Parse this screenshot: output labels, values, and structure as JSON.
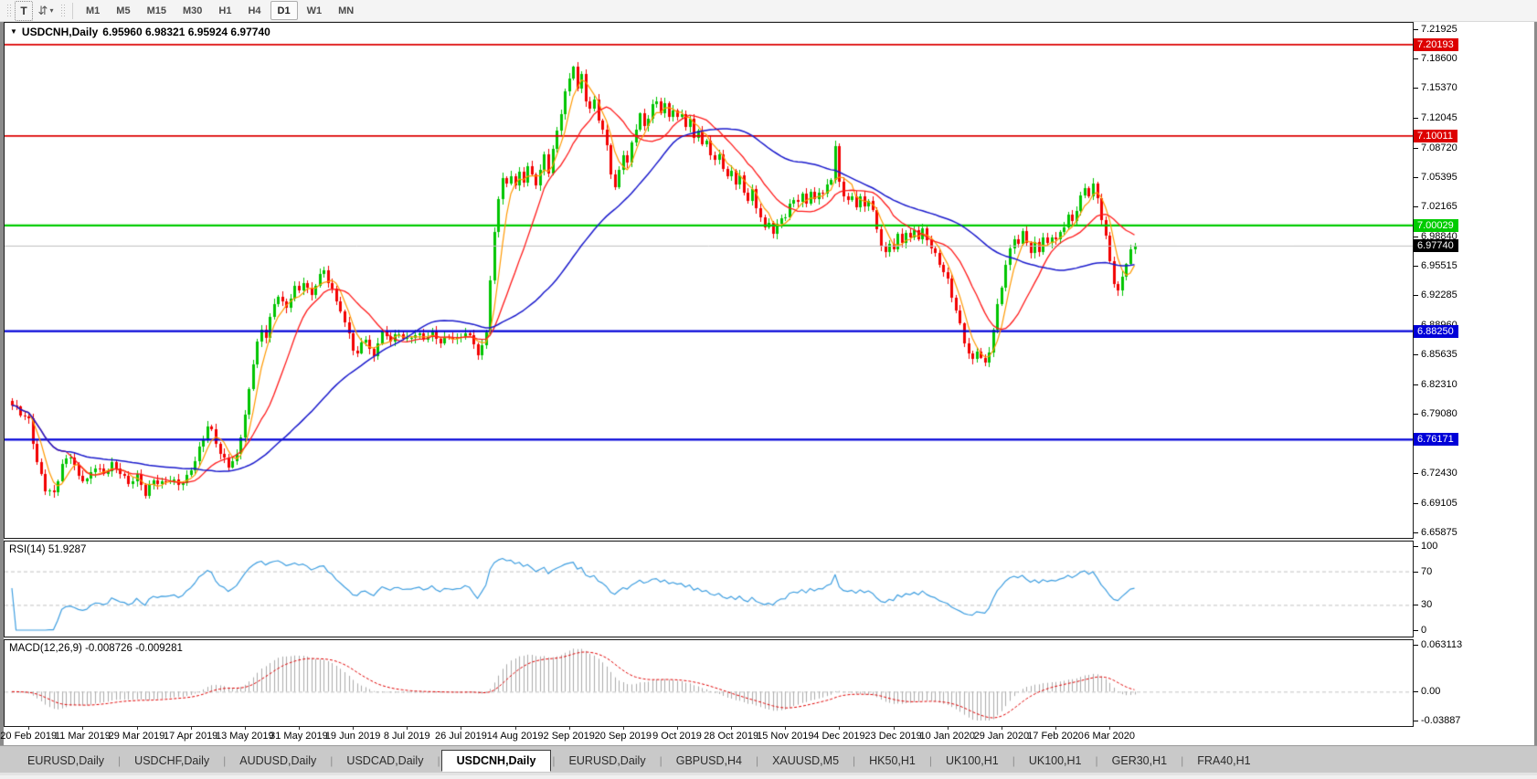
{
  "toolbar": {
    "text_tool_label": "T",
    "swap_tool_glyph": "⇵",
    "dropdown_caret": "▾",
    "timeframes": [
      "M1",
      "M5",
      "M15",
      "M30",
      "H1",
      "H4",
      "D1",
      "W1",
      "MN"
    ],
    "active_timeframe": "D1"
  },
  "chart_title": {
    "window_menu_icon": "▼",
    "symbol_period": "USDCNH,Daily",
    "ohlc": "6.95960 6.98321 6.95924 6.97740"
  },
  "tabs": {
    "items": [
      {
        "label": "EURUSD,Daily",
        "active": false
      },
      {
        "label": "USDCHF,Daily",
        "active": false
      },
      {
        "label": "AUDUSD,Daily",
        "active": false
      },
      {
        "label": "USDCAD,Daily",
        "active": false
      },
      {
        "label": "USDCNH,Daily",
        "active": true
      },
      {
        "label": "EURUSD,Daily",
        "active": false
      },
      {
        "label": "GBPUSD,H4",
        "active": false
      },
      {
        "label": "XAUUSD,M5",
        "active": false
      },
      {
        "label": "HK50,H1",
        "active": false
      },
      {
        "label": "UK100,H1",
        "active": false
      },
      {
        "label": "UK100,H1",
        "active": false
      },
      {
        "label": "GER30,H1",
        "active": false
      },
      {
        "label": "FRA40,H1",
        "active": false
      }
    ]
  },
  "chart_data": {
    "type": "candlestick",
    "symbol": "USDCNH",
    "period": "Daily",
    "y_range": [
      6.6522,
      7.2262
    ],
    "price_ticks": [
      "7.21925",
      "7.18600",
      "7.15370",
      "7.12045",
      "7.08720",
      "7.05395",
      "7.02165",
      "6.98840",
      "6.95515",
      "6.92285",
      "6.88960",
      "6.85635",
      "6.82310",
      "6.79080",
      "6.75755",
      "6.72430",
      "6.69105",
      "6.65875"
    ],
    "hlines": [
      {
        "price": 7.20193,
        "label": "7.20193",
        "color": "#dd0000",
        "width": 1.6
      },
      {
        "price": 7.10011,
        "label": "7.10011",
        "color": "#dd0000",
        "width": 1.6
      },
      {
        "price": 7.00029,
        "label": "7.00029",
        "color": "#00cc00",
        "width": 2.2
      },
      {
        "price": 6.9774,
        "label": "6.97740",
        "color": "#bfbfbf",
        "width": 1,
        "badge": "#000000"
      },
      {
        "price": 6.8825,
        "label": "6.88250",
        "color": "#0000d8",
        "width": 2.2
      },
      {
        "price": 6.76171,
        "label": "6.76171",
        "color": "#0000d8",
        "width": 2.2
      }
    ],
    "x_labels": [
      "20 Feb 2019",
      "11 Mar 2019",
      "29 Mar 2019",
      "17 Apr 2019",
      "13 May 2019",
      "31 May 2019",
      "19 Jun 2019",
      "8 Jul 2019",
      "26 Jul 2019",
      "14 Aug 2019",
      "2 Sep 2019",
      "20 Sep 2019",
      "9 Oct 2019",
      "28 Oct 2019",
      "15 Nov 2019",
      "4 Dec 2019",
      "23 Dec 2019",
      "10 Jan 2020",
      "29 Jan 2020",
      "17 Feb 2020",
      "6 Mar 2020"
    ],
    "first_label_day": 4,
    "label_interval_days": 13,
    "n_days": 271,
    "close_anchors": [
      [
        0,
        6.8
      ],
      [
        1,
        6.795
      ],
      [
        2,
        6.789
      ],
      [
        3,
        6.786
      ],
      [
        4,
        6.783
      ],
      [
        5,
        6.76
      ],
      [
        6,
        6.738
      ],
      [
        8,
        6.708
      ],
      [
        10,
        6.7
      ],
      [
        12,
        6.732
      ],
      [
        14,
        6.745
      ],
      [
        16,
        6.722
      ],
      [
        18,
        6.716
      ],
      [
        20,
        6.731
      ],
      [
        22,
        6.723
      ],
      [
        24,
        6.736
      ],
      [
        26,
        6.726
      ],
      [
        28,
        6.711
      ],
      [
        30,
        6.72
      ],
      [
        32,
        6.702
      ],
      [
        34,
        6.718
      ],
      [
        36,
        6.712
      ],
      [
        38,
        6.716
      ],
      [
        40,
        6.712
      ],
      [
        42,
        6.721
      ],
      [
        44,
        6.739
      ],
      [
        46,
        6.762
      ],
      [
        47,
        6.776
      ],
      [
        48,
        6.77
      ],
      [
        50,
        6.748
      ],
      [
        52,
        6.734
      ],
      [
        54,
        6.742
      ],
      [
        56,
        6.788
      ],
      [
        57,
        6.815
      ],
      [
        58,
        6.848
      ],
      [
        59,
        6.872
      ],
      [
        60,
        6.884
      ],
      [
        61,
        6.878
      ],
      [
        62,
        6.898
      ],
      [
        63,
        6.91
      ],
      [
        64,
        6.922
      ],
      [
        65,
        6.914
      ],
      [
        66,
        6.906
      ],
      [
        67,
        6.922
      ],
      [
        68,
        6.934
      ],
      [
        69,
        6.928
      ],
      [
        70,
        6.94
      ],
      [
        71,
        6.93
      ],
      [
        72,
        6.92
      ],
      [
        73,
        6.934
      ],
      [
        74,
        6.944
      ],
      [
        75,
        6.949
      ],
      [
        76,
        6.94
      ],
      [
        77,
        6.93
      ],
      [
        78,
        6.916
      ],
      [
        79,
        6.908
      ],
      [
        80,
        6.89
      ],
      [
        81,
        6.878
      ],
      [
        82,
        6.862
      ],
      [
        83,
        6.855
      ],
      [
        84,
        6.87
      ],
      [
        85,
        6.876
      ],
      [
        86,
        6.862
      ],
      [
        87,
        6.856
      ],
      [
        88,
        6.872
      ],
      [
        89,
        6.88
      ],
      [
        91,
        6.872
      ],
      [
        93,
        6.88
      ],
      [
        95,
        6.874
      ],
      [
        97,
        6.88
      ],
      [
        99,
        6.873
      ],
      [
        101,
        6.879
      ],
      [
        103,
        6.872
      ],
      [
        105,
        6.878
      ],
      [
        107,
        6.872
      ],
      [
        109,
        6.88
      ],
      [
        111,
        6.87
      ],
      [
        112,
        6.858
      ],
      [
        113,
        6.866
      ],
      [
        114,
        6.884
      ],
      [
        115,
        6.94
      ],
      [
        116,
        6.99
      ],
      [
        117,
        7.03
      ],
      [
        118,
        7.052
      ],
      [
        119,
        7.044
      ],
      [
        120,
        7.058
      ],
      [
        121,
        7.046
      ],
      [
        122,
        7.06
      ],
      [
        123,
        7.052
      ],
      [
        124,
        7.066
      ],
      [
        125,
        7.054
      ],
      [
        126,
        7.046
      ],
      [
        127,
        7.06
      ],
      [
        128,
        7.078
      ],
      [
        129,
        7.062
      ],
      [
        130,
        7.086
      ],
      [
        131,
        7.106
      ],
      [
        132,
        7.128
      ],
      [
        133,
        7.148
      ],
      [
        134,
        7.162
      ],
      [
        135,
        7.178
      ],
      [
        136,
        7.15
      ],
      [
        137,
        7.168
      ],
      [
        138,
        7.142
      ],
      [
        139,
        7.13
      ],
      [
        140,
        7.142
      ],
      [
        141,
        7.12
      ],
      [
        142,
        7.105
      ],
      [
        143,
        7.088
      ],
      [
        144,
        7.058
      ],
      [
        145,
        7.04
      ],
      [
        146,
        7.062
      ],
      [
        147,
        7.082
      ],
      [
        148,
        7.07
      ],
      [
        149,
        7.094
      ],
      [
        150,
        7.11
      ],
      [
        151,
        7.122
      ],
      [
        152,
        7.11
      ],
      [
        153,
        7.12
      ],
      [
        154,
        7.132
      ],
      [
        155,
        7.14
      ],
      [
        156,
        7.128
      ],
      [
        157,
        7.136
      ],
      [
        158,
        7.124
      ],
      [
        159,
        7.13
      ],
      [
        160,
        7.118
      ],
      [
        161,
        7.124
      ],
      [
        162,
        7.11
      ],
      [
        163,
        7.116
      ],
      [
        164,
        7.1
      ],
      [
        165,
        7.108
      ],
      [
        166,
        7.09
      ],
      [
        167,
        7.098
      ],
      [
        168,
        7.08
      ],
      [
        169,
        7.07
      ],
      [
        170,
        7.08
      ],
      [
        171,
        7.062
      ],
      [
        172,
        7.052
      ],
      [
        173,
        7.064
      ],
      [
        174,
        7.048
      ],
      [
        175,
        7.056
      ],
      [
        176,
        7.04
      ],
      [
        177,
        7.028
      ],
      [
        178,
        7.038
      ],
      [
        179,
        7.02
      ],
      [
        180,
        7.008
      ],
      [
        181,
        6.996
      ],
      [
        182,
        7.006
      ],
      [
        183,
        6.992
      ],
      [
        184,
        7.002
      ],
      [
        185,
        7.012
      ],
      [
        186,
        7.008
      ],
      [
        187,
        7.022
      ],
      [
        188,
        7.03
      ],
      [
        189,
        7.024
      ],
      [
        190,
        7.034
      ],
      [
        191,
        7.028
      ],
      [
        192,
        7.038
      ],
      [
        193,
        7.03
      ],
      [
        194,
        7.04
      ],
      [
        195,
        7.034
      ],
      [
        196,
        7.044
      ],
      [
        197,
        7.052
      ],
      [
        198,
        7.086
      ],
      [
        199,
        7.048
      ],
      [
        200,
        7.036
      ],
      [
        201,
        7.028
      ],
      [
        202,
        7.034
      ],
      [
        203,
        7.024
      ],
      [
        204,
        7.03
      ],
      [
        205,
        7.02
      ],
      [
        206,
        7.028
      ],
      [
        207,
        7.014
      ],
      [
        208,
        6.996
      ],
      [
        209,
        6.98
      ],
      [
        210,
        6.97
      ],
      [
        211,
        6.982
      ],
      [
        212,
        6.976
      ],
      [
        213,
        6.988
      ],
      [
        214,
        6.98
      ],
      [
        215,
        6.992
      ],
      [
        216,
        6.984
      ],
      [
        217,
        6.996
      ],
      [
        218,
        6.988
      ],
      [
        219,
        6.996
      ],
      [
        220,
        6.986
      ],
      [
        221,
        6.976
      ],
      [
        222,
        6.966
      ],
      [
        223,
        6.956
      ],
      [
        224,
        6.948
      ],
      [
        225,
        6.938
      ],
      [
        226,
        6.922
      ],
      [
        227,
        6.908
      ],
      [
        228,
        6.89
      ],
      [
        229,
        6.872
      ],
      [
        230,
        6.858
      ],
      [
        231,
        6.848
      ],
      [
        232,
        6.86
      ],
      [
        233,
        6.852
      ],
      [
        234,
        6.845
      ],
      [
        235,
        6.862
      ],
      [
        236,
        6.886
      ],
      [
        237,
        6.912
      ],
      [
        238,
        6.934
      ],
      [
        239,
        6.956
      ],
      [
        240,
        6.972
      ],
      [
        241,
        6.986
      ],
      [
        242,
        6.978
      ],
      [
        243,
        6.992
      ],
      [
        244,
        6.984
      ],
      [
        245,
        6.97
      ],
      [
        246,
        6.982
      ],
      [
        247,
        6.974
      ],
      [
        248,
        6.986
      ],
      [
        249,
        6.978
      ],
      [
        250,
        6.988
      ],
      [
        251,
        6.982
      ],
      [
        252,
        6.992
      ],
      [
        253,
        7.002
      ],
      [
        254,
        7.012
      ],
      [
        255,
        7.006
      ],
      [
        256,
        7.02
      ],
      [
        257,
        7.032
      ],
      [
        258,
        7.04
      ],
      [
        259,
        7.034
      ],
      [
        260,
        7.044
      ],
      [
        261,
        7.03
      ],
      [
        262,
        7.01
      ],
      [
        263,
        6.988
      ],
      [
        264,
        6.962
      ],
      [
        265,
        6.938
      ],
      [
        266,
        6.925
      ],
      [
        267,
        6.942
      ],
      [
        268,
        6.958
      ],
      [
        269,
        6.97
      ],
      [
        270,
        6.9774
      ]
    ],
    "colors": {
      "up": "#00c400",
      "down": "#f20000"
    },
    "moving_averages": [
      {
        "period": 5,
        "color": "#ff9900",
        "width": 1.2
      },
      {
        "period": 14,
        "color": "#ff1a1a",
        "width": 1.3
      },
      {
        "period": 45,
        "color": "#1a1acc",
        "width": 1.5
      }
    ],
    "rsi": {
      "label": "RSI(14) 51.9287",
      "period": 14,
      "current": 51.9287,
      "levels": [
        70,
        30
      ],
      "ticks": [
        "100",
        "70",
        "30",
        "0"
      ],
      "tick_values": [
        100,
        70,
        30,
        0
      ],
      "color": "#3e9ee0"
    },
    "macd": {
      "label": "MACD(12,26,9) -0.008726 -0.009281",
      "fast": 12,
      "slow": 26,
      "signal": 9,
      "current": -0.008726,
      "current_signal": -0.009281,
      "ticks": [
        "0.063113",
        "0.00",
        "-0.03887"
      ],
      "tick_values": [
        0.063113,
        0.0,
        -0.03887
      ],
      "range": [
        -0.03887,
        0.063113
      ],
      "hist_color": "#ababab",
      "signal_color": "#e00000"
    }
  }
}
